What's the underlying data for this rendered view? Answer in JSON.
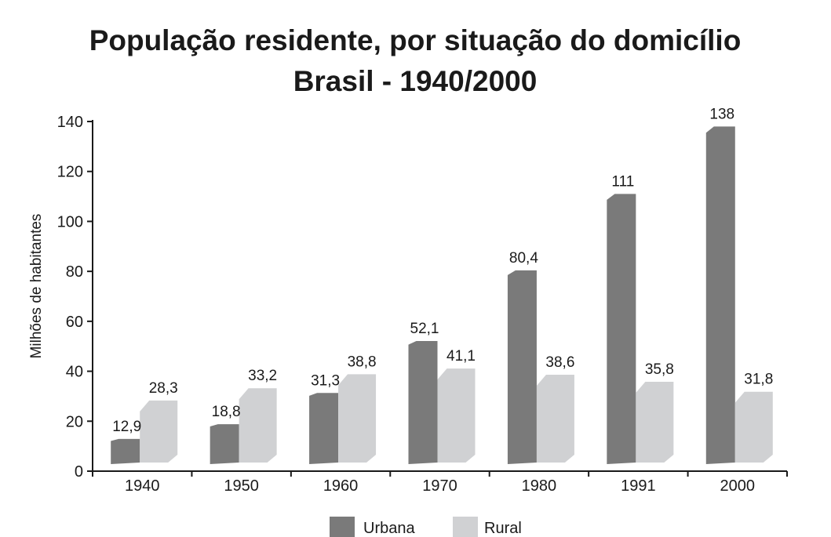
{
  "chart_data": {
    "type": "bar",
    "title": "População residente, por situação do domicílio",
    "subtitle": "Brasil - 1940/2000",
    "xlabel": "",
    "ylabel": "Milhões de habitantes",
    "ylim": [
      0,
      140
    ],
    "yticks": [
      "0",
      "20",
      "40",
      "60",
      "80",
      "100",
      "120",
      "140"
    ],
    "categories": [
      "1940",
      "1950",
      "1960",
      "1970",
      "1980",
      "1991",
      "2000"
    ],
    "series": [
      {
        "name": "Urbana",
        "color": "#7a7a7a",
        "values": [
          12.9,
          18.8,
          31.3,
          52.1,
          80.4,
          111,
          138
        ],
        "labels": [
          "12,9",
          "18,8",
          "31,3",
          "52,1",
          "80,4",
          "111",
          "138"
        ]
      },
      {
        "name": "Rural",
        "color": "#d0d1d3",
        "values": [
          28.3,
          33.2,
          38.8,
          41.1,
          38.6,
          35.8,
          31.8
        ],
        "labels": [
          "28,3",
          "33,2",
          "38,8",
          "41,1",
          "38,6",
          "35,8",
          "31,8"
        ]
      }
    ],
    "legend": "bottom-center",
    "grid": false
  }
}
